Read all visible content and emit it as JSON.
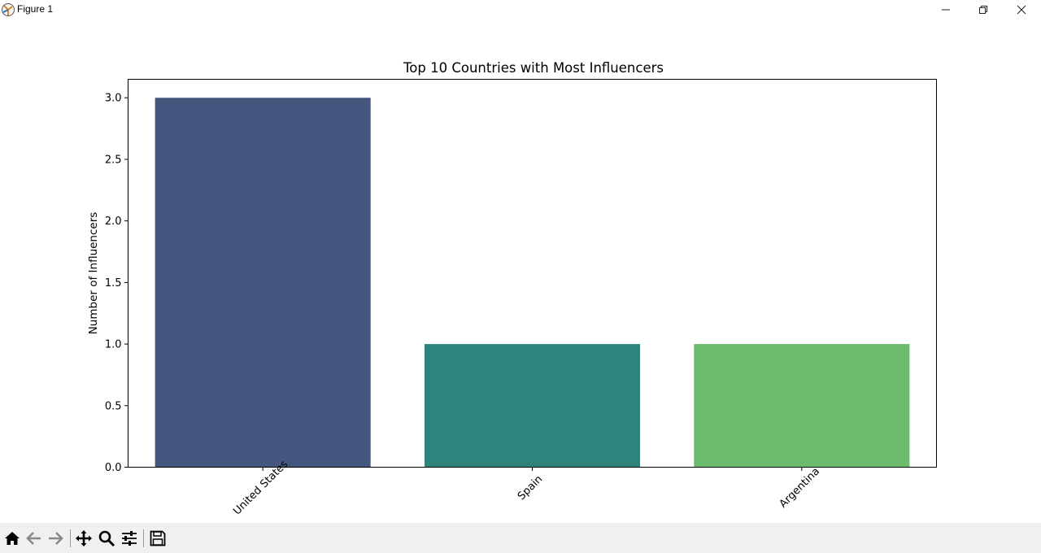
{
  "window": {
    "title": "Figure 1"
  },
  "toolbar": {
    "buttons": [
      {
        "name": "home",
        "icon": "home-icon"
      },
      {
        "name": "back",
        "icon": "back-arrow-icon"
      },
      {
        "name": "forward",
        "icon": "forward-arrow-icon"
      },
      {
        "name": "pan",
        "icon": "move-icon"
      },
      {
        "name": "zoom",
        "icon": "magnifier-icon"
      },
      {
        "name": "configure",
        "icon": "sliders-icon"
      },
      {
        "name": "save",
        "icon": "floppy-disk-icon"
      }
    ]
  },
  "chart_data": {
    "type": "bar",
    "title": "Top 10 Countries with Most Influencers",
    "xlabel": "",
    "ylabel": "Number of Influencers",
    "categories": [
      "United States",
      "Spain",
      "Argentina"
    ],
    "values": [
      3,
      1,
      1
    ],
    "colors": [
      "#46577f",
      "#2e837d",
      "#6bbb6c"
    ],
    "ylim": [
      0,
      3.15
    ],
    "yticks": [
      0.0,
      0.5,
      1.0,
      1.5,
      2.0,
      2.5,
      3.0
    ],
    "ytick_labels": [
      "0.0",
      "0.5",
      "1.0",
      "1.5",
      "2.0",
      "2.5",
      "3.0"
    ],
    "xtick_rotation": 45,
    "grid": false,
    "legend": "none"
  }
}
